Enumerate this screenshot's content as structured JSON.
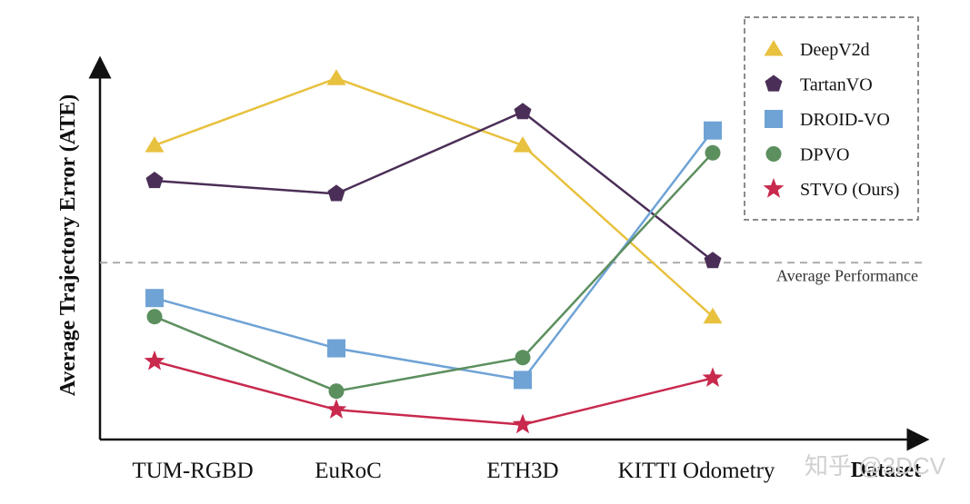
{
  "chart_data": {
    "type": "line",
    "title": "",
    "xlabel": "Dataset",
    "ylabel": "Average Trajectory Error (ATE)",
    "categories": [
      "TUM-RGBD",
      "EuRoC",
      "ETH3D",
      "KITTI Odometry"
    ],
    "ylim": [
      0,
      100
    ],
    "grid": false,
    "legend_position": "top-right",
    "series": [
      {
        "name": "DeepV2d",
        "marker": "triangle",
        "color": "#e8c13e",
        "values": [
          79,
          97,
          79,
          33
        ]
      },
      {
        "name": "TartanVO",
        "marker": "pentagon",
        "color": "#4b2e57",
        "values": [
          69.5,
          66,
          88,
          48
        ]
      },
      {
        "name": "DROID-VO",
        "marker": "square",
        "color": "#6fa3d6",
        "values": [
          38,
          24.5,
          16,
          83
        ]
      },
      {
        "name": "DPVO",
        "marker": "circle",
        "color": "#5c8f5e",
        "values": [
          33,
          13,
          22,
          77
        ]
      },
      {
        "name": "STVO (Ours)",
        "marker": "star",
        "color": "#c8294d",
        "values": [
          21,
          8,
          4,
          16.5
        ]
      }
    ],
    "reference_line": {
      "label": "Average Performance",
      "value": 47.5
    }
  },
  "watermark": {
    "text": "知乎 @3DCV"
  }
}
